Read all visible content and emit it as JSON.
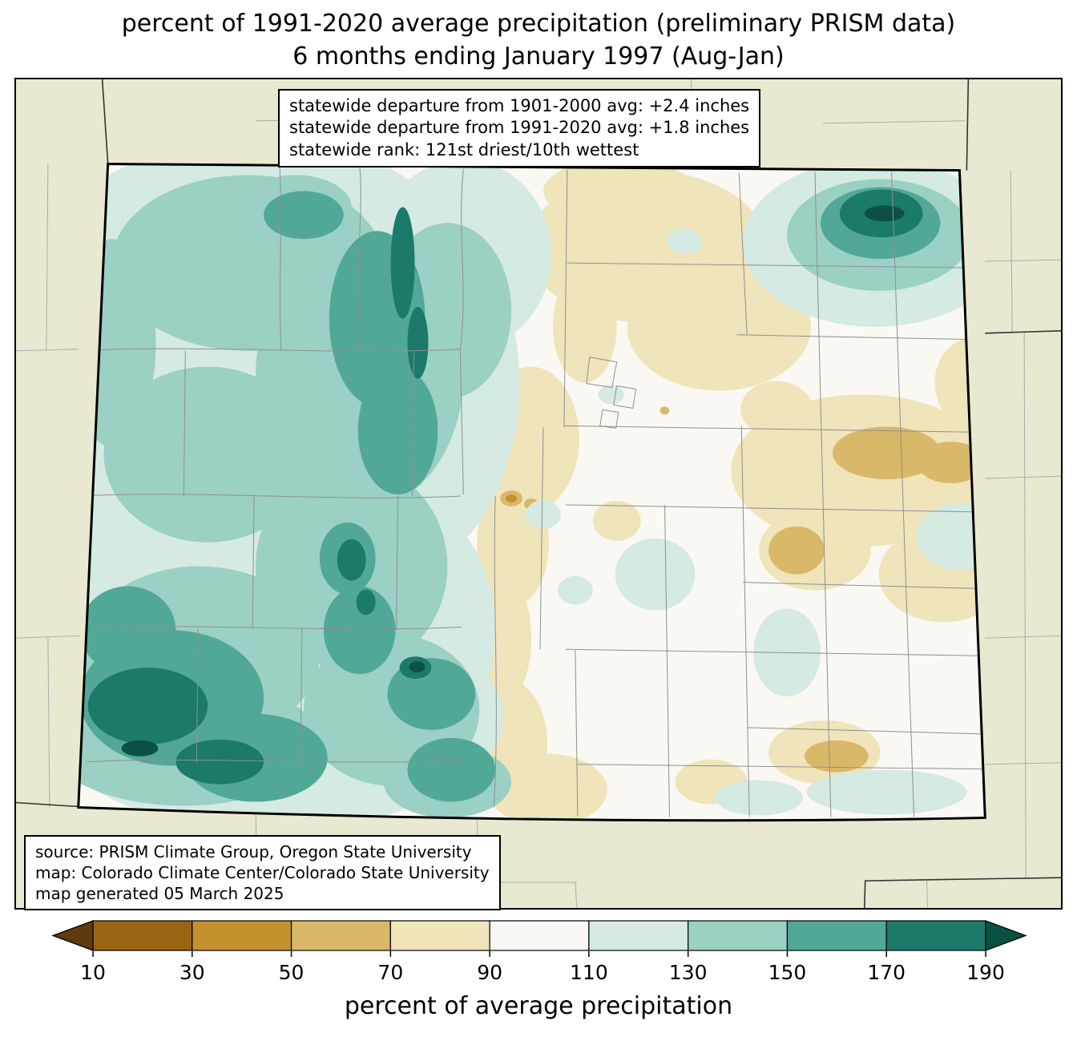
{
  "title": {
    "line1": "percent of 1991-2020 average precipitation (preliminary PRISM data)",
    "line2": "6 months ending January 1997 (Aug-Jan)"
  },
  "stats_box": {
    "lines": [
      "statewide departure from 1901-2000 avg: +2.4 inches",
      "statewide departure from 1991-2020 avg: +1.8 inches",
      "statewide rank: 121st driest/10th wettest"
    ]
  },
  "source_box": {
    "lines": [
      "source: PRISM Climate Group, Oregon State University",
      "map: Colorado Climate Center/Colorado State University",
      "map generated 05 March 2025"
    ]
  },
  "colorbar": {
    "label": "percent of average precipitation",
    "ticks": [
      "10",
      "30",
      "50",
      "70",
      "90",
      "110",
      "130",
      "150",
      "170",
      "190"
    ],
    "under_color": "#5f3a0c",
    "segment_colors": [
      "#9a6412",
      "#c3922f",
      "#dab869",
      "#efe4ba",
      "#f9f8f2",
      "#d4eae2",
      "#9bd0c4",
      "#52a897",
      "#1b7a6a"
    ],
    "over_color": "#0a5143"
  },
  "map": {
    "background_color": "#e9e8d1",
    "county_line_color": "#8f8f8f",
    "state_border_color": "#000000"
  }
}
